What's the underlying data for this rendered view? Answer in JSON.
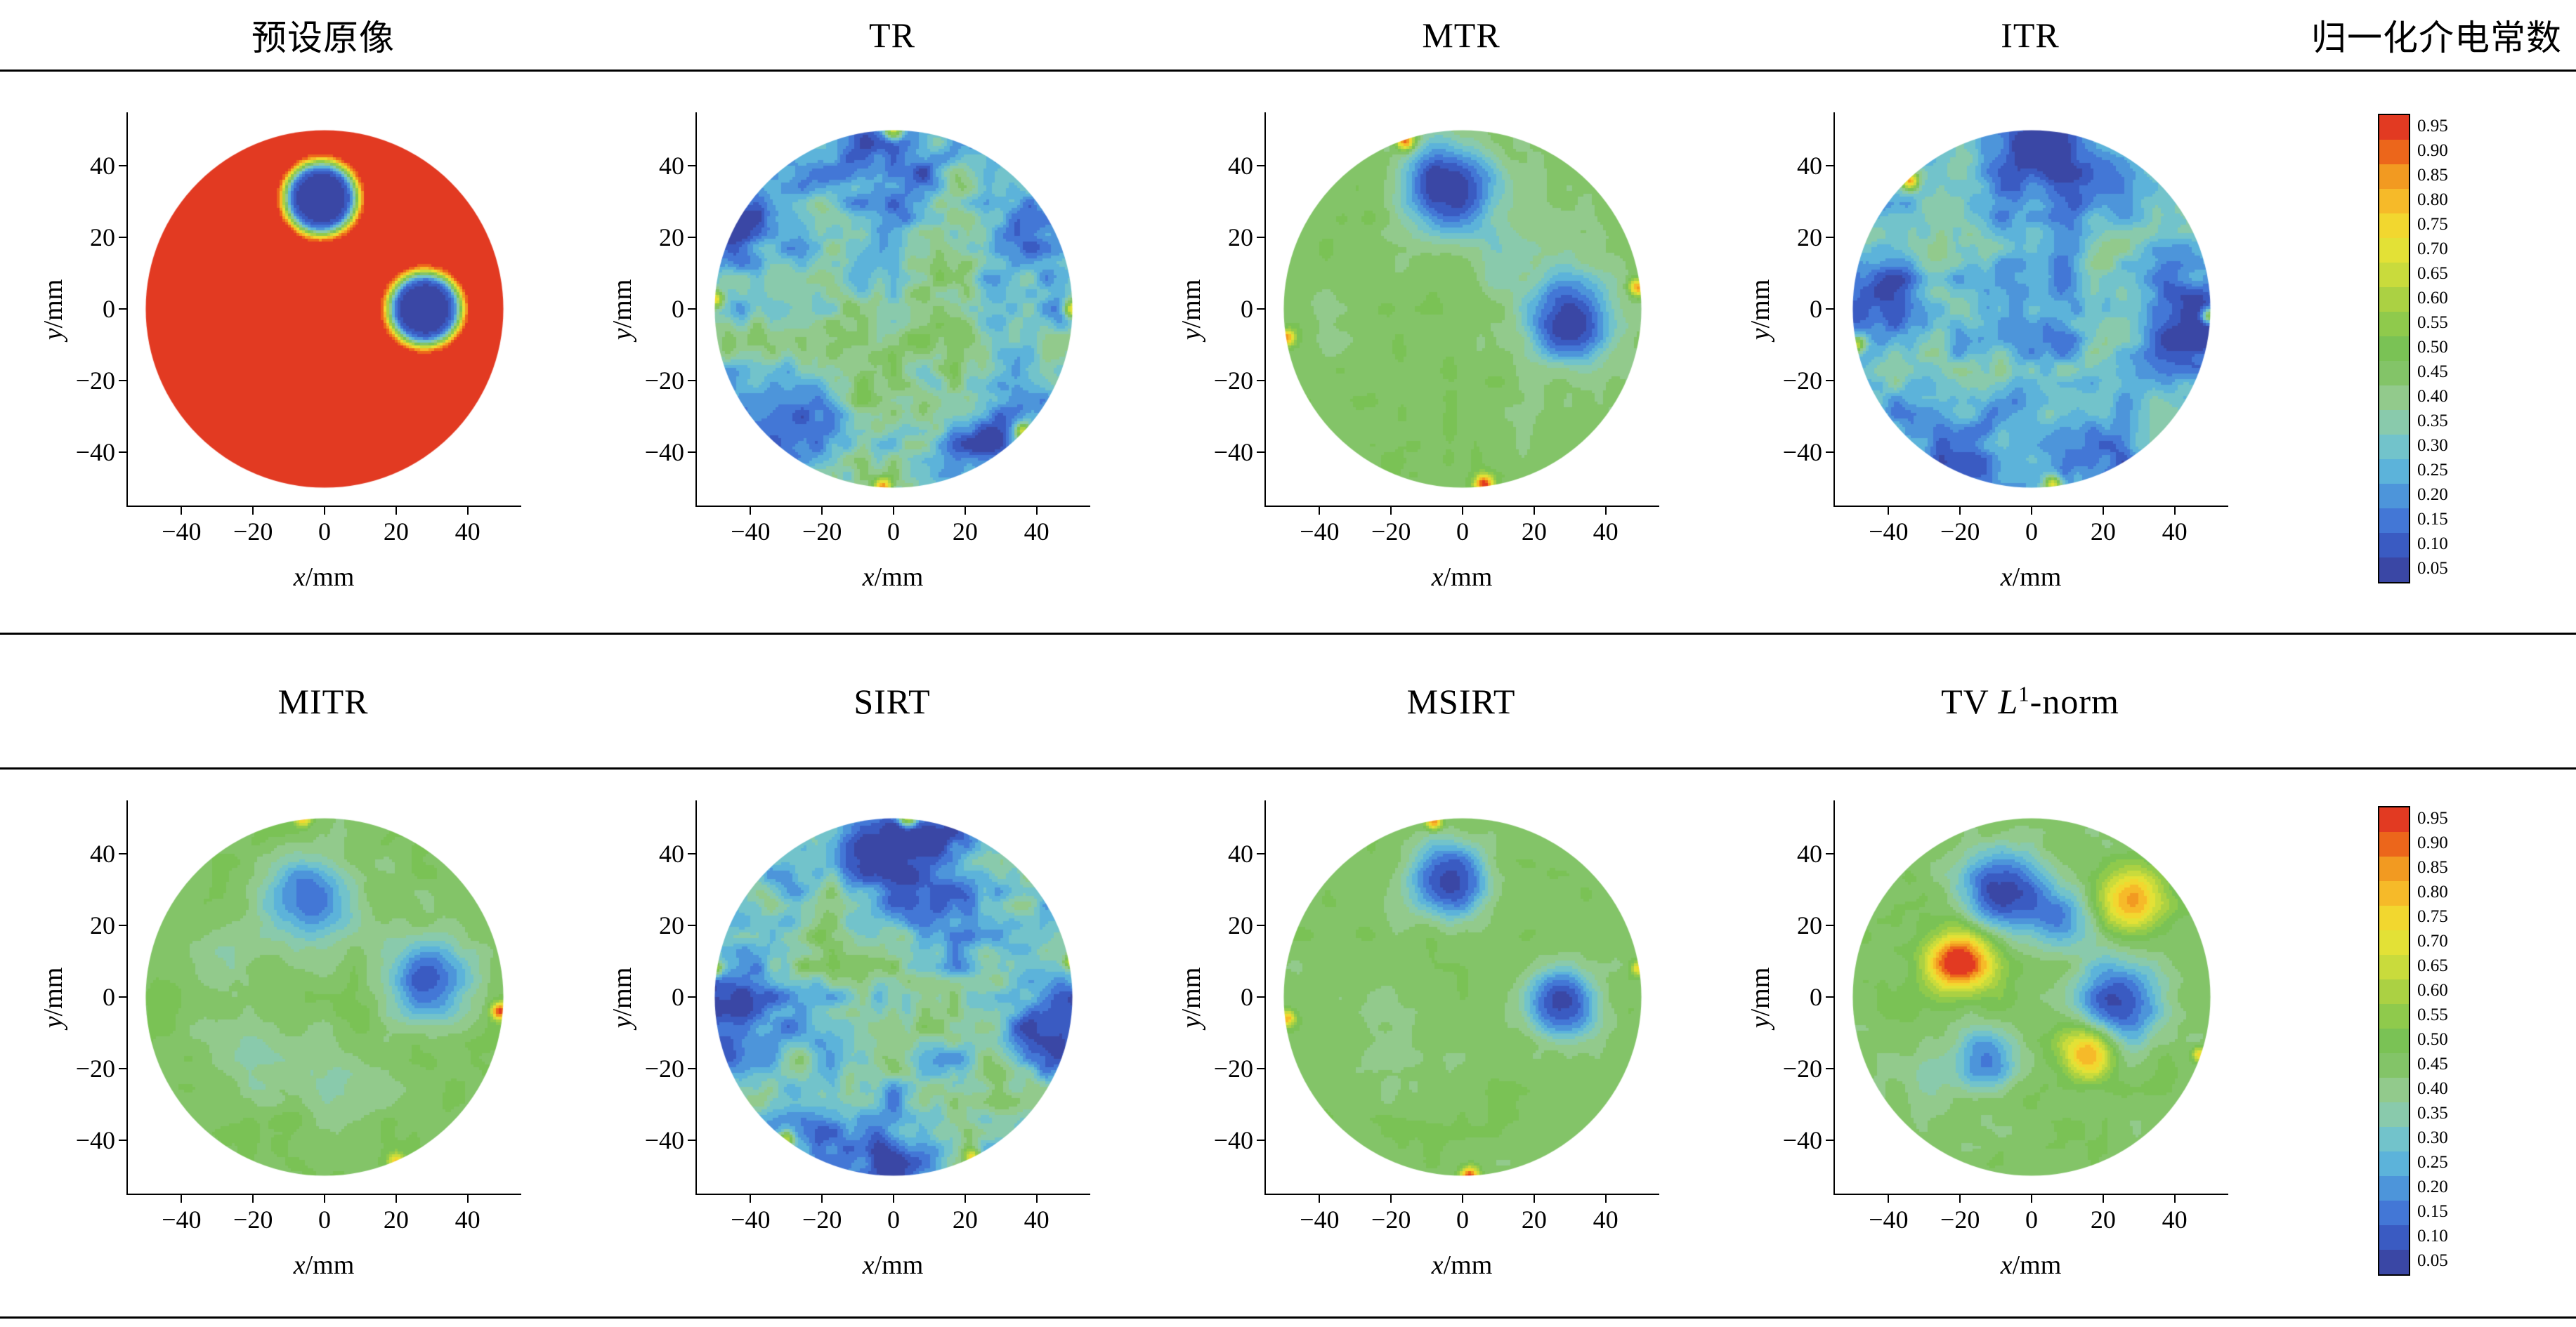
{
  "axes": {
    "x_var": "x",
    "y_var": "y",
    "unit": "/mm",
    "tick_labels": [
      "−40",
      "−20",
      "0",
      "20",
      "40"
    ]
  },
  "colorbar": {
    "title": "归一化介电常数",
    "tick_labels": [
      "0.95",
      "0.90",
      "0.85",
      "0.80",
      "0.75",
      "0.70",
      "0.65",
      "0.60",
      "0.55",
      "0.50",
      "0.45",
      "0.40",
      "0.35",
      "0.30",
      "0.25",
      "0.20",
      "0.15",
      "0.10",
      "0.05"
    ],
    "colors": [
      "#e23a22",
      "#ec661b",
      "#f29a21",
      "#f6ba29",
      "#f2d72f",
      "#e3e136",
      "#c9db3c",
      "#abd143",
      "#8fca4c",
      "#7ac255",
      "#83c468",
      "#92ca8c",
      "#89caac",
      "#72c3cb",
      "#5cb3da",
      "#4d95da",
      "#4377d6",
      "#3a5bc2",
      "#3a47a5"
    ]
  },
  "figure": {
    "row2": {
      "tv_title": {
        "pre": "TV ",
        "em": "L",
        "sup": "1",
        "post": "-norm"
      }
    }
  },
  "chart_data": {
    "type": "heatmap",
    "layout": "2 rows x 4 circular tomographic reconstruction contour maps with shared discrete colorbar per row",
    "x": {
      "label": "x/mm",
      "range": [
        -55,
        55
      ],
      "ticks": [
        -40,
        -20,
        0,
        20,
        40
      ]
    },
    "y": {
      "label": "y/mm",
      "range": [
        -55,
        55
      ],
      "ticks": [
        -40,
        -20,
        0,
        20,
        40
      ]
    },
    "domain_radius_mm": 50,
    "value_levels": [
      0.05,
      0.1,
      0.15,
      0.2,
      0.25,
      0.3,
      0.35,
      0.4,
      0.45,
      0.5,
      0.55,
      0.6,
      0.65,
      0.7,
      0.75,
      0.8,
      0.85,
      0.9,
      0.95
    ],
    "panels": [
      {
        "key": "preset",
        "title": "预设原像",
        "base": 0.95,
        "noise": 0,
        "seed": 1,
        "features": [
          {
            "x": -1,
            "y": 31,
            "r": 10.5,
            "a": -0.9,
            "p": 8
          },
          {
            "x": 28,
            "y": 0,
            "r": 10.5,
            "a": -0.9,
            "p": 8
          }
        ]
      },
      {
        "key": "tr",
        "title": "TR",
        "base": 0.32,
        "noise": 0.16,
        "seed": 7,
        "features": [
          {
            "x": -2,
            "y": 44,
            "r": 16,
            "a": -0.26,
            "p": 2
          },
          {
            "x": -42,
            "y": 18,
            "r": 13,
            "a": -0.2,
            "p": 2
          },
          {
            "x": 42,
            "y": 22,
            "r": 12,
            "a": -0.2,
            "p": 2
          },
          {
            "x": -32,
            "y": -34,
            "r": 14,
            "a": -0.22,
            "p": 2
          },
          {
            "x": 28,
            "y": -38,
            "r": 13,
            "a": -0.22,
            "p": 2
          },
          {
            "x": 0,
            "y": -10,
            "r": 22,
            "a": 0.07,
            "p": 2
          },
          {
            "x": 0,
            "y": 50,
            "r": 2.6,
            "a": 0.55,
            "p": 2
          },
          {
            "x": -50,
            "y": 3,
            "r": 2.4,
            "a": 0.5,
            "p": 2
          },
          {
            "x": 50,
            "y": 0,
            "r": 2.4,
            "a": 0.5,
            "p": 2
          },
          {
            "x": -3,
            "y": -50,
            "r": 2.6,
            "a": 0.55,
            "p": 2
          },
          {
            "x": 36,
            "y": -34,
            "r": 2.2,
            "a": 0.4,
            "p": 2
          }
        ]
      },
      {
        "key": "mtr",
        "title": "MTR",
        "base": 0.45,
        "noise": 0.05,
        "seed": 3,
        "features": [
          {
            "x": -4,
            "y": 34,
            "r": 13,
            "a": -0.42,
            "p": 2.5
          },
          {
            "x": 30,
            "y": -3,
            "r": 12,
            "a": -0.42,
            "p": 2.5
          },
          {
            "x": 14,
            "y": 16,
            "r": 14,
            "a": -0.1,
            "p": 2
          },
          {
            "x": -16,
            "y": 47,
            "r": 2.6,
            "a": 0.5,
            "p": 2
          },
          {
            "x": 49,
            "y": 6,
            "r": 2.4,
            "a": 0.45,
            "p": 2
          },
          {
            "x": 6,
            "y": -49,
            "r": 2.6,
            "a": 0.5,
            "p": 2
          },
          {
            "x": -49,
            "y": -8,
            "r": 2.2,
            "a": 0.4,
            "p": 2
          }
        ]
      },
      {
        "key": "itr",
        "title": "ITR",
        "base": 0.3,
        "noise": 0.14,
        "seed": 9,
        "features": [
          {
            "x": 2,
            "y": 42,
            "r": 18,
            "a": -0.26,
            "p": 2
          },
          {
            "x": -44,
            "y": 2,
            "r": 13,
            "a": -0.24,
            "p": 2
          },
          {
            "x": 44,
            "y": -4,
            "r": 15,
            "a": -0.28,
            "p": 2
          },
          {
            "x": -18,
            "y": -40,
            "r": 14,
            "a": -0.2,
            "p": 2
          },
          {
            "x": 22,
            "y": -40,
            "r": 13,
            "a": -0.2,
            "p": 2
          },
          {
            "x": -2,
            "y": 2,
            "r": 13,
            "a": -0.14,
            "p": 2
          },
          {
            "x": -24,
            "y": 16,
            "r": 10,
            "a": 0.08,
            "p": 2
          },
          {
            "x": -34,
            "y": 36,
            "r": 2.4,
            "a": 0.5,
            "p": 2
          },
          {
            "x": 50,
            "y": -2,
            "r": 2.4,
            "a": 0.5,
            "p": 2
          },
          {
            "x": 6,
            "y": -49,
            "r": 2.4,
            "a": 0.45,
            "p": 2
          },
          {
            "x": -49,
            "y": -10,
            "r": 2.2,
            "a": 0.4,
            "p": 2
          }
        ]
      },
      {
        "key": "mitr",
        "title": "MITR",
        "base": 0.46,
        "noise": 0.05,
        "seed": 4,
        "features": [
          {
            "x": -4,
            "y": 27,
            "r": 12,
            "a": -0.35,
            "p": 2.2
          },
          {
            "x": 29,
            "y": 4,
            "r": 12,
            "a": -0.35,
            "p": 2.2
          },
          {
            "x": -18,
            "y": -18,
            "r": 12,
            "a": -0.1,
            "p": 2
          },
          {
            "x": 8,
            "y": -26,
            "r": 10,
            "a": -0.09,
            "p": 2
          },
          {
            "x": -28,
            "y": 10,
            "r": 9,
            "a": -0.08,
            "p": 2
          },
          {
            "x": 49,
            "y": -4,
            "r": 2.4,
            "a": 0.5,
            "p": 2
          },
          {
            "x": -6,
            "y": 50,
            "r": 2.2,
            "a": 0.35,
            "p": 2
          },
          {
            "x": 20,
            "y": -46,
            "r": 2.2,
            "a": 0.3,
            "p": 2
          }
        ]
      },
      {
        "key": "sirt",
        "title": "SIRT",
        "base": 0.33,
        "noise": 0.16,
        "seed": 13,
        "features": [
          {
            "x": 4,
            "y": 42,
            "r": 18,
            "a": -0.3,
            "p": 2
          },
          {
            "x": -44,
            "y": -4,
            "r": 14,
            "a": -0.26,
            "p": 2
          },
          {
            "x": 45,
            "y": -8,
            "r": 14,
            "a": -0.3,
            "p": 2
          },
          {
            "x": -6,
            "y": -44,
            "r": 15,
            "a": -0.24,
            "p": 2
          },
          {
            "x": -20,
            "y": 14,
            "r": 14,
            "a": 0.08,
            "p": 2
          },
          {
            "x": 4,
            "y": 50,
            "r": 2.6,
            "a": 0.55,
            "p": 2
          },
          {
            "x": -50,
            "y": 8,
            "r": 2.2,
            "a": 0.4,
            "p": 2
          },
          {
            "x": 50,
            "y": 10,
            "r": 2.2,
            "a": 0.4,
            "p": 2
          },
          {
            "x": -30,
            "y": -40,
            "r": 2.2,
            "a": 0.4,
            "p": 2
          },
          {
            "x": 22,
            "y": -45,
            "r": 2.3,
            "a": 0.45,
            "p": 2
          }
        ]
      },
      {
        "key": "msirt",
        "title": "MSIRT",
        "base": 0.46,
        "noise": 0.04,
        "seed": 5,
        "features": [
          {
            "x": -4,
            "y": 33,
            "r": 11,
            "a": -0.4,
            "p": 2.5
          },
          {
            "x": 28,
            "y": -2,
            "r": 10,
            "a": -0.38,
            "p": 2.5
          },
          {
            "x": -20,
            "y": -10,
            "r": 14,
            "a": -0.06,
            "p": 2
          },
          {
            "x": -8,
            "y": 49,
            "r": 2.3,
            "a": 0.45,
            "p": 2
          },
          {
            "x": 2,
            "y": -50,
            "r": 2.5,
            "a": 0.5,
            "p": 2
          },
          {
            "x": -49,
            "y": -6,
            "r": 2.2,
            "a": 0.35,
            "p": 2
          },
          {
            "x": 49,
            "y": 8,
            "r": 2.1,
            "a": 0.3,
            "p": 2
          }
        ]
      },
      {
        "key": "tv-l1-norm",
        "title": "TV L1-norm",
        "base": 0.46,
        "noise": 0.05,
        "seed": 8,
        "features": [
          {
            "x": -8,
            "y": 30,
            "r": 12,
            "a": -0.42,
            "p": 2.2
          },
          {
            "x": 8,
            "y": 22,
            "r": 9,
            "a": -0.25,
            "p": 2
          },
          {
            "x": 24,
            "y": -2,
            "r": 12,
            "a": -0.42,
            "p": 2.2
          },
          {
            "x": -13,
            "y": -18,
            "r": 9,
            "a": -0.3,
            "p": 2.2
          },
          {
            "x": -20,
            "y": 10,
            "r": 9,
            "a": 0.52,
            "p": 2.2
          },
          {
            "x": 16,
            "y": -15,
            "r": 8,
            "a": 0.42,
            "p": 2.2
          },
          {
            "x": 28,
            "y": 27,
            "r": 9,
            "a": 0.38,
            "p": 2.2
          },
          {
            "x": -30,
            "y": -25,
            "r": 10,
            "a": -0.08,
            "p": 2
          },
          {
            "x": 47,
            "y": -16,
            "r": 2.2,
            "a": 0.3,
            "p": 2
          }
        ]
      }
    ]
  }
}
